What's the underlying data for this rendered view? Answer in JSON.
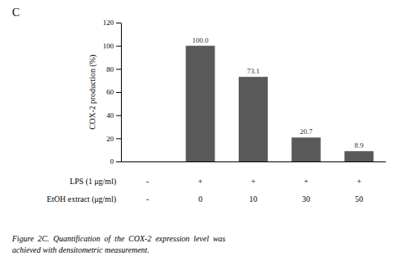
{
  "chart_data": {
    "type": "bar",
    "title": "C",
    "categories": [
      null,
      null,
      null,
      null,
      null
    ],
    "values": [
      0,
      100.0,
      73.1,
      20.7,
      8.9
    ],
    "value_labels": [
      null,
      "100.0",
      "73.1",
      "20.7",
      "8.9"
    ],
    "data_labels": true,
    "color": "#595959",
    "ylabel": "COX-2 production (%)",
    "ylim": [
      0,
      120
    ],
    "yticks": [
      0,
      20,
      40,
      60,
      80,
      100,
      120
    ],
    "tick_labels": "y",
    "grid": false,
    "category_rows": [
      {
        "label": "LPS (1 μg/ml)",
        "values": [
          "-",
          "+",
          "+",
          "+",
          "+"
        ]
      },
      {
        "label": "EtOH extract (μg/ml)",
        "values": [
          "-",
          "0",
          "10",
          "30",
          "50"
        ]
      }
    ],
    "caption": [
      "Figure  2C.  Quantification  of  the  COX-2  expression  level  was",
      "achieved with densitometric measurement."
    ]
  }
}
